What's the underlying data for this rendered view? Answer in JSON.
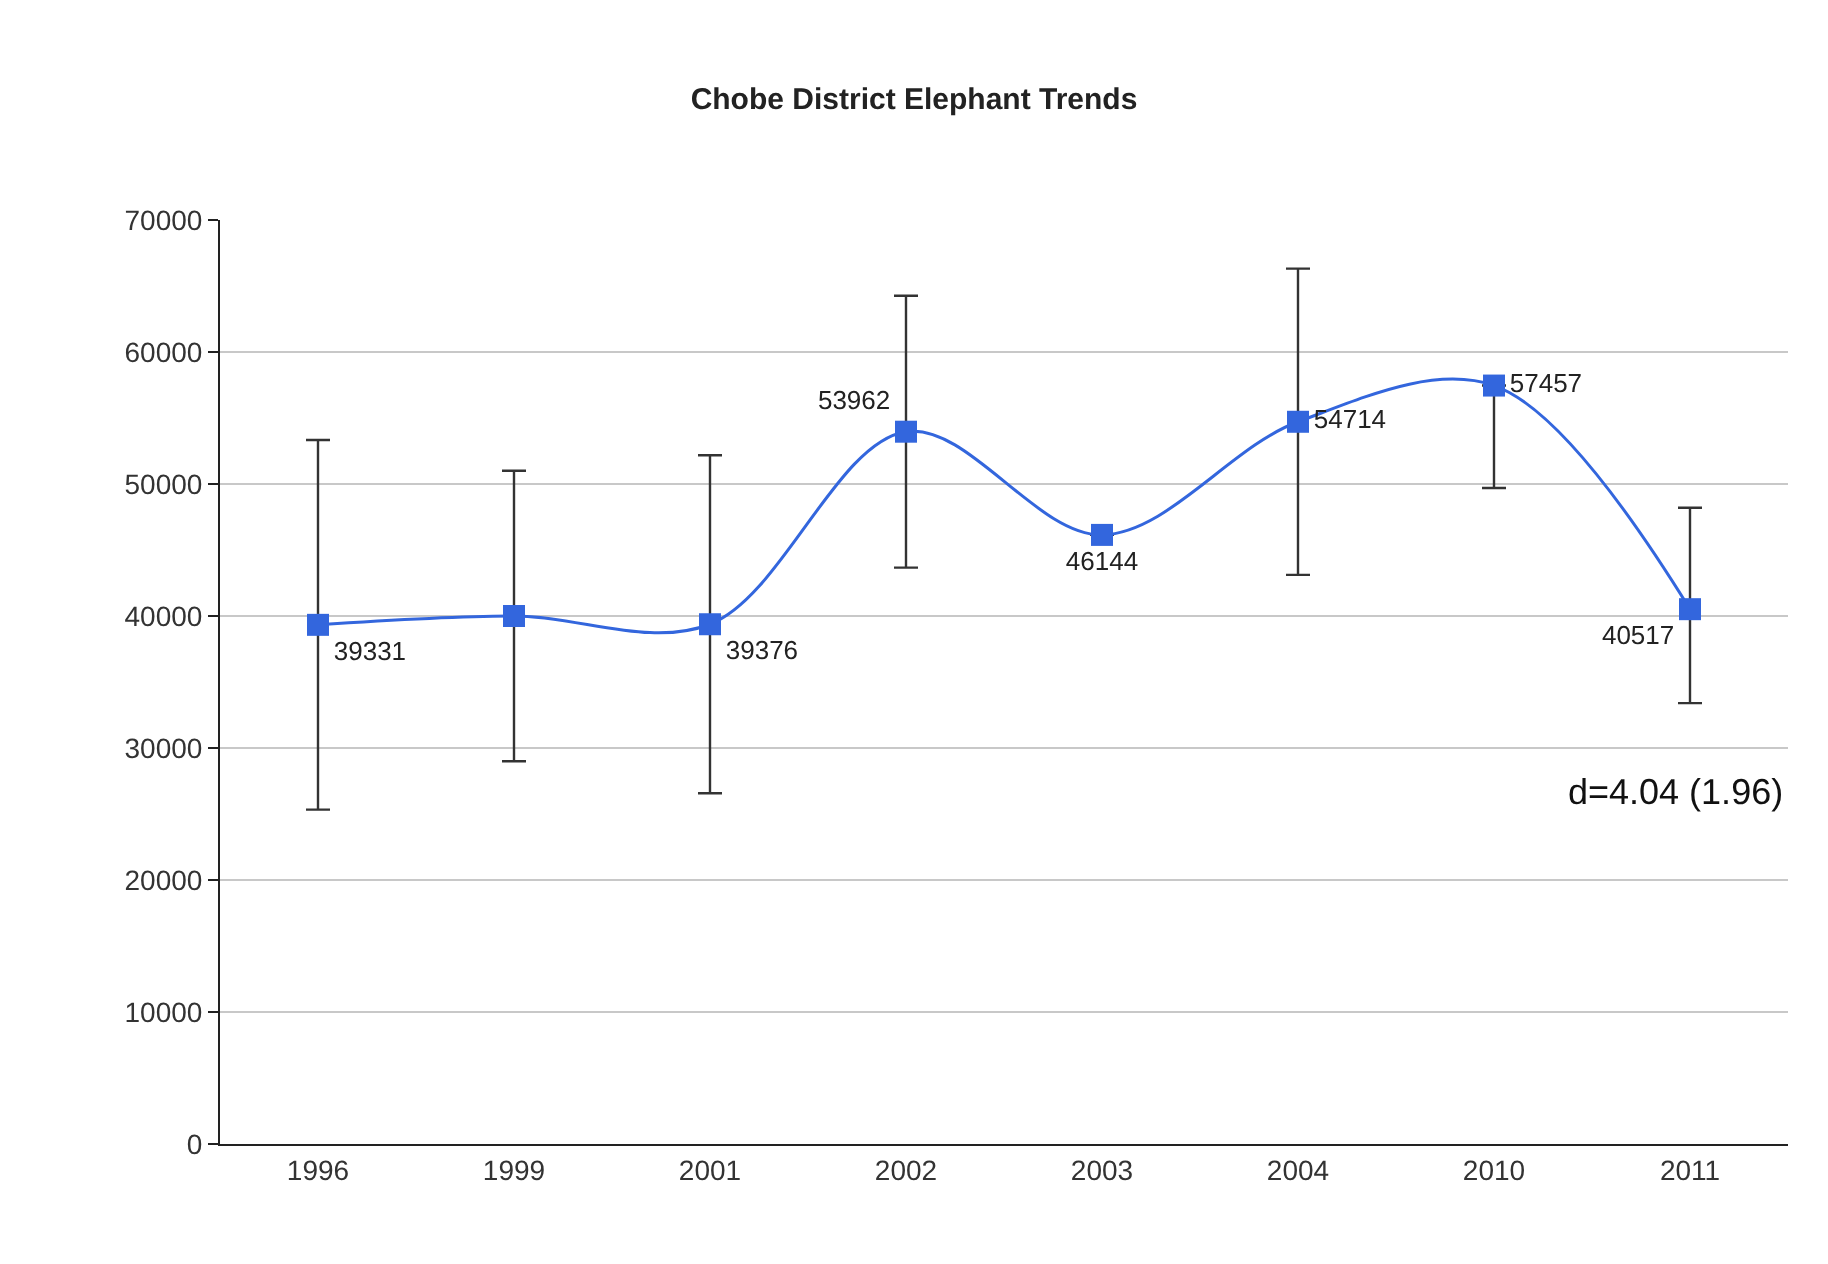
{
  "chart_data": {
    "type": "line",
    "title": "Chobe District Elephant Trends",
    "categories": [
      "1996",
      "1999",
      "2001",
      "2002",
      "2003",
      "2004",
      "2010",
      "2011"
    ],
    "values": [
      39331,
      40000,
      39376,
      53962,
      46144,
      54714,
      57457,
      40517
    ],
    "value_labels": [
      "39331",
      null,
      "39376",
      "53962",
      "46144",
      "54714",
      "57457",
      "40517"
    ],
    "errors": [
      14000,
      11000,
      12800,
      10300,
      null,
      11600,
      [
        49700,
        57457
      ],
      [
        33400,
        48200
      ]
    ],
    "color": "#3366dd",
    "marker": "square",
    "line_style": "solid",
    "ylim": [
      0,
      70000
    ],
    "yticks": [
      0,
      10000,
      20000,
      30000,
      40000,
      50000,
      60000,
      70000
    ],
    "grid": "y",
    "legend": false,
    "annotations": [
      "d=4.04 (1.96)"
    ]
  }
}
